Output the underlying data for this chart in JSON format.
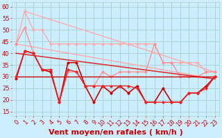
{
  "xlabel": "Vent moyen/en rafales ( km/h )",
  "bg_color": "#cceeff",
  "grid_color": "#aad4d4",
  "xlim": [
    -0.5,
    23.5
  ],
  "ylim": [
    13,
    62
  ],
  "yticks": [
    15,
    20,
    25,
    30,
    35,
    40,
    45,
    50,
    55,
    60
  ],
  "xticks": [
    0,
    1,
    2,
    3,
    4,
    5,
    6,
    7,
    8,
    9,
    10,
    11,
    12,
    13,
    14,
    15,
    16,
    17,
    18,
    19,
    20,
    21,
    22,
    23
  ],
  "series": [
    {
      "x": [
        0,
        23
      ],
      "y": [
        44,
        29
      ],
      "color": "#ffaaaa",
      "lw": 1.0,
      "marker": null,
      "ms": 0
    },
    {
      "x": [
        1,
        23
      ],
      "y": [
        58,
        32
      ],
      "color": "#ffaaaa",
      "lw": 1.0,
      "marker": null,
      "ms": 0
    },
    {
      "x": [
        0,
        1,
        2,
        3,
        4,
        5,
        6,
        7,
        8,
        9,
        10,
        11,
        12,
        13,
        14,
        15,
        16,
        17,
        18,
        19,
        20,
        21,
        22,
        23
      ],
      "y": [
        44,
        58,
        50,
        50,
        44,
        44,
        44,
        44,
        44,
        44,
        44,
        44,
        44,
        44,
        44,
        44,
        44,
        36,
        36,
        36,
        36,
        36,
        32,
        32
      ],
      "color": "#ffaaaa",
      "lw": 1.0,
      "marker": "o",
      "ms": 2.5
    },
    {
      "x": [
        0,
        1,
        2,
        3,
        4,
        5,
        6,
        7,
        8,
        9,
        10,
        11,
        12,
        13,
        14,
        15,
        16,
        17,
        18,
        19,
        20,
        21,
        22,
        23
      ],
      "y": [
        44,
        51,
        40,
        33,
        32,
        19,
        32,
        32,
        26,
        26,
        32,
        30,
        32,
        32,
        32,
        32,
        44,
        36,
        36,
        30,
        30,
        30,
        32,
        32
      ],
      "color": "#ff9090",
      "lw": 1.0,
      "marker": "o",
      "ms": 2.5
    },
    {
      "x": [
        0,
        23
      ],
      "y": [
        40,
        29
      ],
      "color": "#dd3333",
      "lw": 1.2,
      "marker": null,
      "ms": 0
    },
    {
      "x": [
        0,
        1,
        2,
        3,
        4,
        5,
        6,
        7,
        8,
        9,
        10,
        11,
        12,
        13,
        14,
        15,
        16,
        17,
        18,
        19,
        20,
        21,
        22,
        23
      ],
      "y": [
        29,
        41,
        40,
        33,
        32,
        19,
        36,
        36,
        26,
        19,
        26,
        23,
        26,
        23,
        26,
        19,
        19,
        25,
        19,
        19,
        23,
        23,
        26,
        30
      ],
      "color": "#cc0000",
      "lw": 1.2,
      "marker": "o",
      "ms": 2.5
    },
    {
      "x": [
        0,
        1,
        2,
        3,
        4,
        5,
        6,
        7,
        8,
        9,
        10,
        11,
        12,
        13,
        14,
        15,
        16,
        17,
        18,
        19,
        20,
        21,
        22,
        23
      ],
      "y": [
        30,
        30,
        30,
        30,
        30,
        30,
        30,
        30,
        30,
        30,
        30,
        30,
        30,
        30,
        30,
        30,
        30,
        30,
        30,
        30,
        30,
        30,
        30,
        30
      ],
      "color": "#cc0000",
      "lw": 1.0,
      "marker": null,
      "ms": 0
    },
    {
      "x": [
        0,
        1,
        2,
        3,
        4,
        5,
        6,
        7,
        8,
        9,
        10,
        11,
        12,
        13,
        14,
        15,
        16,
        17,
        18,
        19,
        20,
        21,
        22,
        23
      ],
      "y": [
        30,
        41,
        40,
        33,
        33,
        19,
        33,
        32,
        26,
        26,
        26,
        26,
        26,
        26,
        25,
        19,
        19,
        19,
        19,
        19,
        23,
        23,
        25,
        30
      ],
      "color": "#ee2222",
      "lw": 1.0,
      "marker": "o",
      "ms": 2.5
    }
  ],
  "xlabel_color": "#cc0000",
  "xlabel_fontsize": 8,
  "tick_fontsize": 6,
  "tick_color": "#cc0000"
}
